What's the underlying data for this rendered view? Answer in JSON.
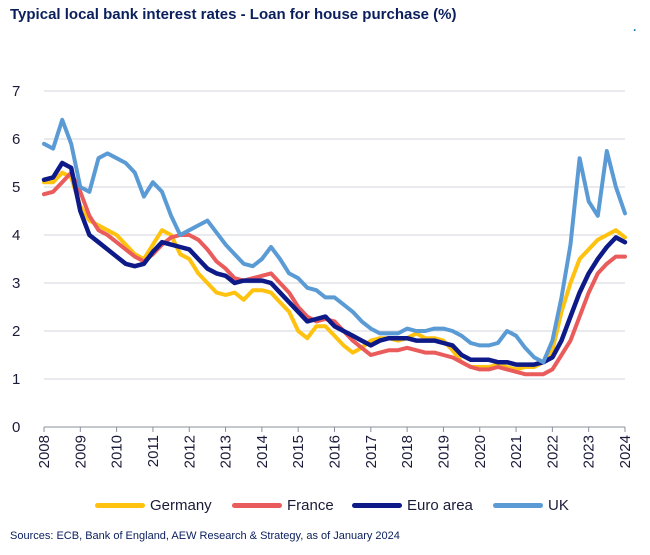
{
  "title": "Typical local bank interest rates - Loan for house purchase (%)",
  "corner_mark": ".",
  "source": "Sources: ECB, Bank of England, AEW Research & Strategy, as of January 2024",
  "chart_data": {
    "type": "line",
    "title": "Typical local bank interest rates - Loan for house purchase (%)",
    "xlabel": "",
    "ylabel": "",
    "xlim": [
      2008,
      2024
    ],
    "ylim": [
      0,
      7
    ],
    "yticks": [
      "0",
      "1",
      "2",
      "3",
      "4",
      "5",
      "6",
      "7"
    ],
    "xticks": [
      "2008",
      "2009",
      "2010",
      "2011",
      "2012",
      "2013",
      "2014",
      "2015",
      "2016",
      "2017",
      "2018",
      "2019",
      "2020",
      "2021",
      "2022",
      "2023",
      "2024"
    ],
    "grid": "horizontal",
    "legend_position": "bottom",
    "series": [
      {
        "name": "Germany",
        "color": "#ffc20e",
        "points": [
          [
            2008.0,
            5.1
          ],
          [
            2008.25,
            5.1
          ],
          [
            2008.5,
            5.3
          ],
          [
            2008.75,
            5.2
          ],
          [
            2009.0,
            4.6
          ],
          [
            2009.25,
            4.3
          ],
          [
            2009.5,
            4.2
          ],
          [
            2009.75,
            4.1
          ],
          [
            2010.0,
            4.0
          ],
          [
            2010.25,
            3.8
          ],
          [
            2010.5,
            3.6
          ],
          [
            2010.75,
            3.5
          ],
          [
            2011.0,
            3.8
          ],
          [
            2011.25,
            4.1
          ],
          [
            2011.5,
            4.0
          ],
          [
            2011.75,
            3.6
          ],
          [
            2012.0,
            3.5
          ],
          [
            2012.25,
            3.2
          ],
          [
            2012.5,
            3.0
          ],
          [
            2012.75,
            2.8
          ],
          [
            2013.0,
            2.75
          ],
          [
            2013.25,
            2.8
          ],
          [
            2013.5,
            2.65
          ],
          [
            2013.75,
            2.85
          ],
          [
            2014.0,
            2.85
          ],
          [
            2014.25,
            2.8
          ],
          [
            2014.5,
            2.6
          ],
          [
            2014.75,
            2.4
          ],
          [
            2015.0,
            2.0
          ],
          [
            2015.25,
            1.85
          ],
          [
            2015.5,
            2.1
          ],
          [
            2015.75,
            2.1
          ],
          [
            2016.0,
            1.9
          ],
          [
            2016.25,
            1.7
          ],
          [
            2016.5,
            1.55
          ],
          [
            2016.75,
            1.65
          ],
          [
            2017.0,
            1.8
          ],
          [
            2017.25,
            1.85
          ],
          [
            2017.5,
            1.85
          ],
          [
            2017.75,
            1.8
          ],
          [
            2018.0,
            1.85
          ],
          [
            2018.25,
            1.95
          ],
          [
            2018.5,
            1.85
          ],
          [
            2018.75,
            1.85
          ],
          [
            2019.0,
            1.8
          ],
          [
            2019.25,
            1.6
          ],
          [
            2019.5,
            1.35
          ],
          [
            2019.75,
            1.25
          ],
          [
            2020.0,
            1.25
          ],
          [
            2020.25,
            1.25
          ],
          [
            2020.5,
            1.3
          ],
          [
            2020.75,
            1.25
          ],
          [
            2021.0,
            1.2
          ],
          [
            2021.25,
            1.25
          ],
          [
            2021.5,
            1.25
          ],
          [
            2021.75,
            1.35
          ],
          [
            2022.0,
            1.6
          ],
          [
            2022.25,
            2.4
          ],
          [
            2022.5,
            3.0
          ],
          [
            2022.75,
            3.5
          ],
          [
            2023.0,
            3.7
          ],
          [
            2023.25,
            3.9
          ],
          [
            2023.5,
            4.0
          ],
          [
            2023.75,
            4.1
          ],
          [
            2024.0,
            3.95
          ]
        ]
      },
      {
        "name": "France",
        "color": "#ea5b5b",
        "points": [
          [
            2008.0,
            4.85
          ],
          [
            2008.25,
            4.9
          ],
          [
            2008.5,
            5.1
          ],
          [
            2008.75,
            5.3
          ],
          [
            2009.0,
            4.9
          ],
          [
            2009.25,
            4.4
          ],
          [
            2009.5,
            4.1
          ],
          [
            2009.75,
            4.0
          ],
          [
            2010.0,
            3.85
          ],
          [
            2010.25,
            3.7
          ],
          [
            2010.5,
            3.55
          ],
          [
            2010.75,
            3.45
          ],
          [
            2011.0,
            3.6
          ],
          [
            2011.25,
            3.8
          ],
          [
            2011.5,
            3.95
          ],
          [
            2011.75,
            4.0
          ],
          [
            2012.0,
            4.0
          ],
          [
            2012.25,
            3.9
          ],
          [
            2012.5,
            3.7
          ],
          [
            2012.75,
            3.45
          ],
          [
            2013.0,
            3.3
          ],
          [
            2013.25,
            3.1
          ],
          [
            2013.5,
            3.05
          ],
          [
            2013.75,
            3.1
          ],
          [
            2014.0,
            3.15
          ],
          [
            2014.25,
            3.2
          ],
          [
            2014.5,
            3.0
          ],
          [
            2014.75,
            2.8
          ],
          [
            2015.0,
            2.5
          ],
          [
            2015.25,
            2.3
          ],
          [
            2015.5,
            2.2
          ],
          [
            2015.75,
            2.25
          ],
          [
            2016.0,
            2.2
          ],
          [
            2016.25,
            2.0
          ],
          [
            2016.5,
            1.8
          ],
          [
            2016.75,
            1.65
          ],
          [
            2017.0,
            1.5
          ],
          [
            2017.25,
            1.55
          ],
          [
            2017.5,
            1.6
          ],
          [
            2017.75,
            1.6
          ],
          [
            2018.0,
            1.65
          ],
          [
            2018.25,
            1.6
          ],
          [
            2018.5,
            1.55
          ],
          [
            2018.75,
            1.55
          ],
          [
            2019.0,
            1.5
          ],
          [
            2019.25,
            1.45
          ],
          [
            2019.5,
            1.35
          ],
          [
            2019.75,
            1.25
          ],
          [
            2020.0,
            1.2
          ],
          [
            2020.25,
            1.2
          ],
          [
            2020.5,
            1.25
          ],
          [
            2020.75,
            1.2
          ],
          [
            2021.0,
            1.15
          ],
          [
            2021.25,
            1.1
          ],
          [
            2021.5,
            1.1
          ],
          [
            2021.75,
            1.1
          ],
          [
            2022.0,
            1.2
          ],
          [
            2022.25,
            1.5
          ],
          [
            2022.5,
            1.8
          ],
          [
            2022.75,
            2.3
          ],
          [
            2023.0,
            2.8
          ],
          [
            2023.25,
            3.2
          ],
          [
            2023.5,
            3.4
          ],
          [
            2023.75,
            3.55
          ],
          [
            2024.0,
            3.55
          ]
        ]
      },
      {
        "name": "Euro area",
        "color": "#0e1a87",
        "points": [
          [
            2008.0,
            5.15
          ],
          [
            2008.25,
            5.2
          ],
          [
            2008.5,
            5.5
          ],
          [
            2008.75,
            5.4
          ],
          [
            2009.0,
            4.5
          ],
          [
            2009.25,
            4.0
          ],
          [
            2009.5,
            3.85
          ],
          [
            2009.75,
            3.7
          ],
          [
            2010.0,
            3.55
          ],
          [
            2010.25,
            3.4
          ],
          [
            2010.5,
            3.35
          ],
          [
            2010.75,
            3.4
          ],
          [
            2011.0,
            3.65
          ],
          [
            2011.25,
            3.85
          ],
          [
            2011.5,
            3.8
          ],
          [
            2011.75,
            3.75
          ],
          [
            2012.0,
            3.7
          ],
          [
            2012.25,
            3.5
          ],
          [
            2012.5,
            3.3
          ],
          [
            2012.75,
            3.2
          ],
          [
            2013.0,
            3.15
          ],
          [
            2013.25,
            3.0
          ],
          [
            2013.5,
            3.05
          ],
          [
            2013.75,
            3.05
          ],
          [
            2014.0,
            3.05
          ],
          [
            2014.25,
            3.0
          ],
          [
            2014.5,
            2.8
          ],
          [
            2014.75,
            2.6
          ],
          [
            2015.0,
            2.4
          ],
          [
            2015.25,
            2.2
          ],
          [
            2015.5,
            2.25
          ],
          [
            2015.75,
            2.3
          ],
          [
            2016.0,
            2.1
          ],
          [
            2016.25,
            2.0
          ],
          [
            2016.5,
            1.9
          ],
          [
            2016.75,
            1.8
          ],
          [
            2017.0,
            1.7
          ],
          [
            2017.25,
            1.8
          ],
          [
            2017.5,
            1.85
          ],
          [
            2017.75,
            1.85
          ],
          [
            2018.0,
            1.85
          ],
          [
            2018.25,
            1.8
          ],
          [
            2018.5,
            1.8
          ],
          [
            2018.75,
            1.8
          ],
          [
            2019.0,
            1.75
          ],
          [
            2019.25,
            1.7
          ],
          [
            2019.5,
            1.5
          ],
          [
            2019.75,
            1.4
          ],
          [
            2020.0,
            1.4
          ],
          [
            2020.25,
            1.4
          ],
          [
            2020.5,
            1.35
          ],
          [
            2020.75,
            1.35
          ],
          [
            2021.0,
            1.3
          ],
          [
            2021.25,
            1.3
          ],
          [
            2021.5,
            1.3
          ],
          [
            2021.75,
            1.35
          ],
          [
            2022.0,
            1.45
          ],
          [
            2022.25,
            1.8
          ],
          [
            2022.5,
            2.3
          ],
          [
            2022.75,
            2.8
          ],
          [
            2023.0,
            3.2
          ],
          [
            2023.25,
            3.5
          ],
          [
            2023.5,
            3.75
          ],
          [
            2023.75,
            3.95
          ],
          [
            2024.0,
            3.85
          ]
        ]
      },
      {
        "name": "UK",
        "color": "#5b9bd5",
        "points": [
          [
            2008.0,
            5.9
          ],
          [
            2008.25,
            5.8
          ],
          [
            2008.5,
            6.4
          ],
          [
            2008.75,
            5.9
          ],
          [
            2009.0,
            5.0
          ],
          [
            2009.25,
            4.9
          ],
          [
            2009.5,
            5.6
          ],
          [
            2009.75,
            5.7
          ],
          [
            2010.0,
            5.6
          ],
          [
            2010.25,
            5.5
          ],
          [
            2010.5,
            5.3
          ],
          [
            2010.75,
            4.8
          ],
          [
            2011.0,
            5.1
          ],
          [
            2011.25,
            4.9
          ],
          [
            2011.5,
            4.4
          ],
          [
            2011.75,
            4.0
          ],
          [
            2012.0,
            4.1
          ],
          [
            2012.25,
            4.2
          ],
          [
            2012.5,
            4.3
          ],
          [
            2012.75,
            4.05
          ],
          [
            2013.0,
            3.8
          ],
          [
            2013.25,
            3.6
          ],
          [
            2013.5,
            3.4
          ],
          [
            2013.75,
            3.35
          ],
          [
            2014.0,
            3.5
          ],
          [
            2014.25,
            3.75
          ],
          [
            2014.5,
            3.5
          ],
          [
            2014.75,
            3.2
          ],
          [
            2015.0,
            3.1
          ],
          [
            2015.25,
            2.9
          ],
          [
            2015.5,
            2.85
          ],
          [
            2015.75,
            2.7
          ],
          [
            2016.0,
            2.7
          ],
          [
            2016.25,
            2.55
          ],
          [
            2016.5,
            2.4
          ],
          [
            2016.75,
            2.2
          ],
          [
            2017.0,
            2.05
          ],
          [
            2017.25,
            1.95
          ],
          [
            2017.5,
            1.95
          ],
          [
            2017.75,
            1.95
          ],
          [
            2018.0,
            2.05
          ],
          [
            2018.25,
            2.0
          ],
          [
            2018.5,
            2.0
          ],
          [
            2018.75,
            2.05
          ],
          [
            2019.0,
            2.05
          ],
          [
            2019.25,
            2.0
          ],
          [
            2019.5,
            1.9
          ],
          [
            2019.75,
            1.75
          ],
          [
            2020.0,
            1.7
          ],
          [
            2020.25,
            1.7
          ],
          [
            2020.5,
            1.75
          ],
          [
            2020.75,
            2.0
          ],
          [
            2021.0,
            1.9
          ],
          [
            2021.25,
            1.65
          ],
          [
            2021.5,
            1.45
          ],
          [
            2021.75,
            1.35
          ],
          [
            2022.0,
            1.8
          ],
          [
            2022.25,
            2.7
          ],
          [
            2022.5,
            3.8
          ],
          [
            2022.75,
            5.6
          ],
          [
            2023.0,
            4.7
          ],
          [
            2023.25,
            4.4
          ],
          [
            2023.5,
            5.75
          ],
          [
            2023.75,
            5.0
          ],
          [
            2024.0,
            4.45
          ]
        ]
      }
    ]
  }
}
